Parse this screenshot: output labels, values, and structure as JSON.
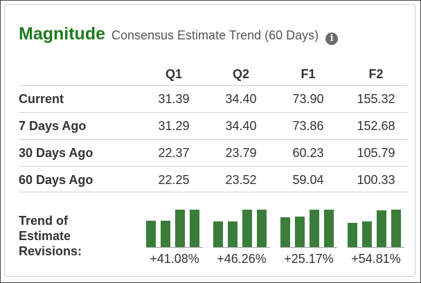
{
  "header": {
    "brand": "Magnitude",
    "subtitle": "Consensus Estimate Trend (60 Days)",
    "info_icon": "info-circle-icon"
  },
  "columns": [
    "Q1",
    "Q2",
    "F1",
    "F2"
  ],
  "rows": [
    {
      "label": "Current",
      "values": [
        "31.39",
        "34.40",
        "73.90",
        "155.32"
      ]
    },
    {
      "label": "7 Days Ago",
      "values": [
        "31.29",
        "34.40",
        "73.86",
        "152.68"
      ]
    },
    {
      "label": "30 Days Ago",
      "values": [
        "22.37",
        "23.79",
        "60.23",
        "105.79"
      ]
    },
    {
      "label": "60 Days Ago",
      "values": [
        "22.25",
        "23.52",
        "59.04",
        "100.33"
      ]
    }
  ],
  "trend": {
    "label_lines": [
      "Trend of",
      "Estimate",
      "Revisions:"
    ],
    "bar_color": "#3a7d3a",
    "changes": [
      "+41.08%",
      "+46.26%",
      "+25.17%",
      "+54.81%"
    ]
  }
}
